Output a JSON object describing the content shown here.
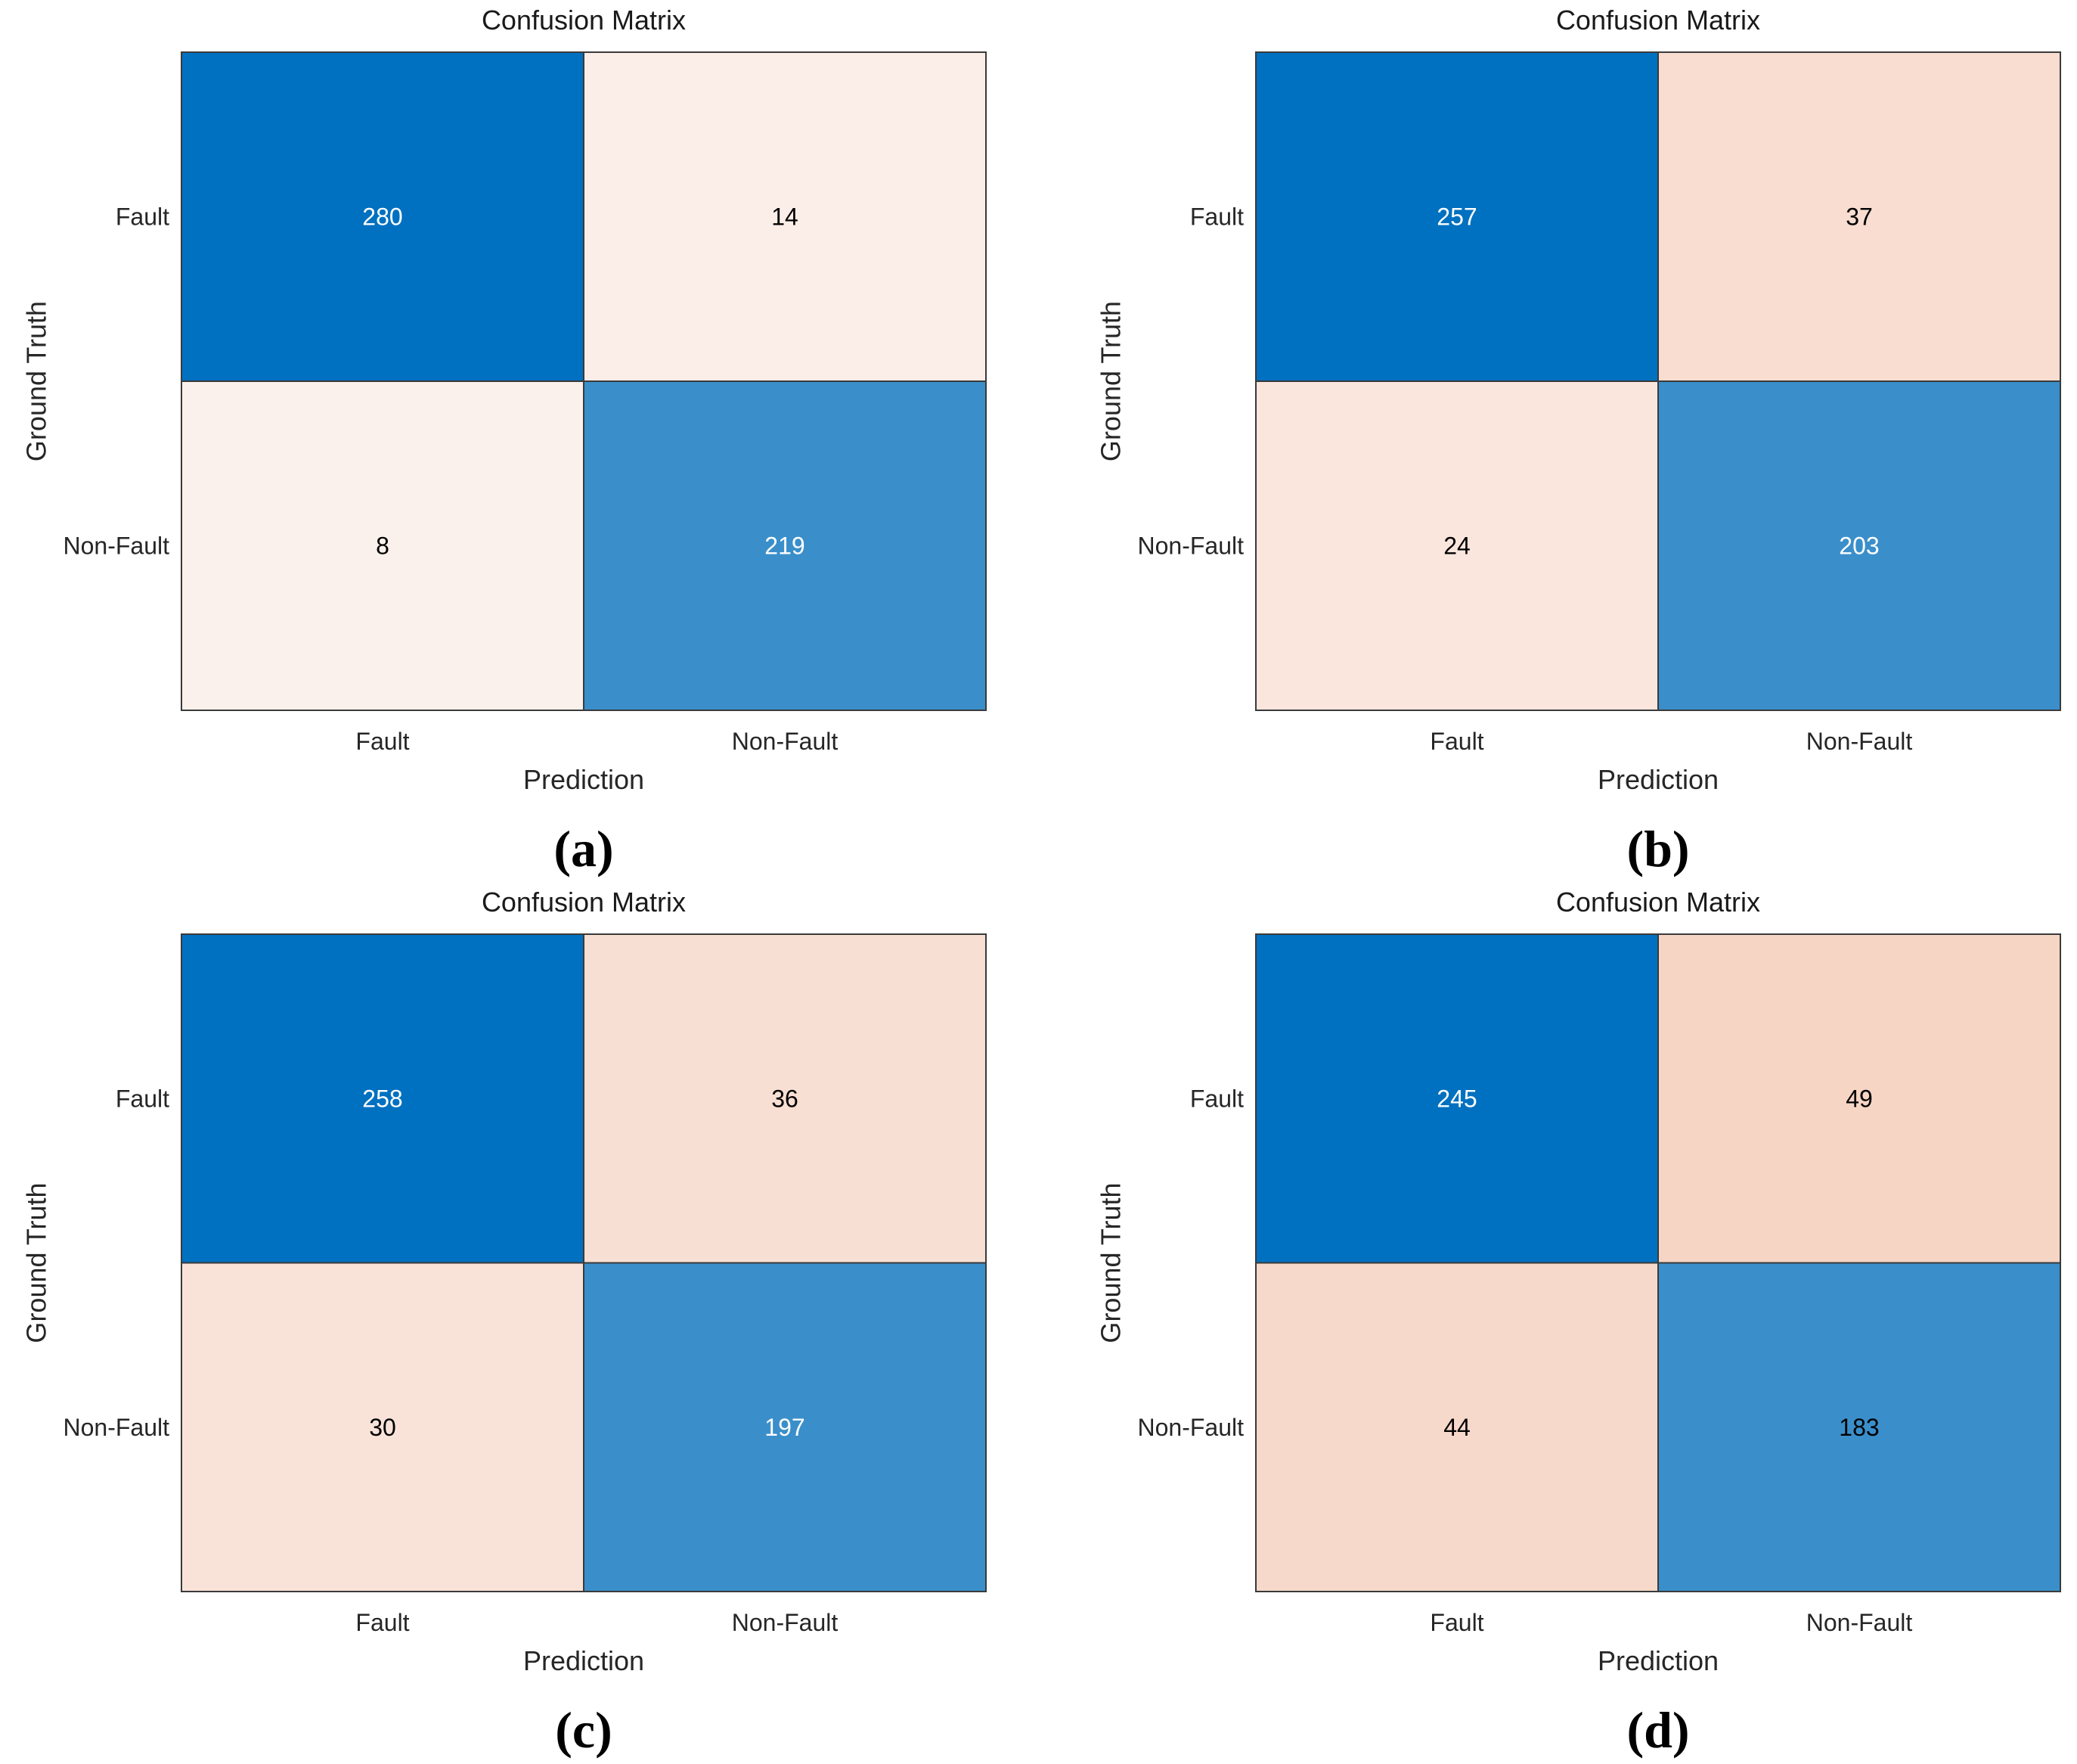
{
  "chart_data": [
    {
      "type": "heatmap",
      "panel_label": "(a)",
      "title": "Confusion Matrix",
      "xlabel": "Prediction",
      "ylabel": "Ground Truth",
      "x_categories": [
        "Fault",
        "Non-Fault"
      ],
      "y_categories": [
        "Fault",
        "Non-Fault"
      ],
      "values": [
        [
          280,
          14
        ],
        [
          8,
          219
        ]
      ],
      "cell_colors": [
        [
          "#0070c0",
          "#fbeee8"
        ],
        [
          "#fbf1ec",
          "#3a8fca"
        ]
      ],
      "text_colors": [
        [
          "#ffffff",
          "#000000"
        ],
        [
          "#000000",
          "#ffffff"
        ]
      ]
    },
    {
      "type": "heatmap",
      "panel_label": "(b)",
      "title": "Confusion Matrix",
      "xlabel": "Prediction",
      "ylabel": "Ground Truth",
      "x_categories": [
        "Fault",
        "Non-Fault"
      ],
      "y_categories": [
        "Fault",
        "Non-Fault"
      ],
      "values": [
        [
          257,
          37
        ],
        [
          24,
          203
        ]
      ],
      "cell_colors": [
        [
          "#0070c0",
          "#f8ddd0"
        ],
        [
          "#fae6dd",
          "#3a8fca"
        ]
      ],
      "text_colors": [
        [
          "#ffffff",
          "#000000"
        ],
        [
          "#000000",
          "#ffffff"
        ]
      ]
    },
    {
      "type": "heatmap",
      "panel_label": "(c)",
      "title": "Confusion Matrix",
      "xlabel": "Prediction",
      "ylabel": "Ground Truth",
      "x_categories": [
        "Fault",
        "Non-Fault"
      ],
      "y_categories": [
        "Fault",
        "Non-Fault"
      ],
      "values": [
        [
          258,
          36
        ],
        [
          30,
          197
        ]
      ],
      "cell_colors": [
        [
          "#0070c0",
          "#f8dfd3"
        ],
        [
          "#f9e3d9",
          "#3a8fca"
        ]
      ],
      "text_colors": [
        [
          "#ffffff",
          "#000000"
        ],
        [
          "#000000",
          "#ffffff"
        ]
      ]
    },
    {
      "type": "heatmap",
      "panel_label": "(d)",
      "title": "Confusion Matrix",
      "xlabel": "Prediction",
      "ylabel": "Ground Truth",
      "x_categories": [
        "Fault",
        "Non-Fault"
      ],
      "y_categories": [
        "Fault",
        "Non-Fault"
      ],
      "values": [
        [
          245,
          49
        ],
        [
          44,
          183
        ]
      ],
      "cell_colors": [
        [
          "#0070c0",
          "#f6d5c5"
        ],
        [
          "#f6d9ca",
          "#3a8fca"
        ]
      ],
      "text_colors": [
        [
          "#ffffff",
          "#000000"
        ],
        [
          "#000000",
          "#000000"
        ]
      ]
    }
  ]
}
